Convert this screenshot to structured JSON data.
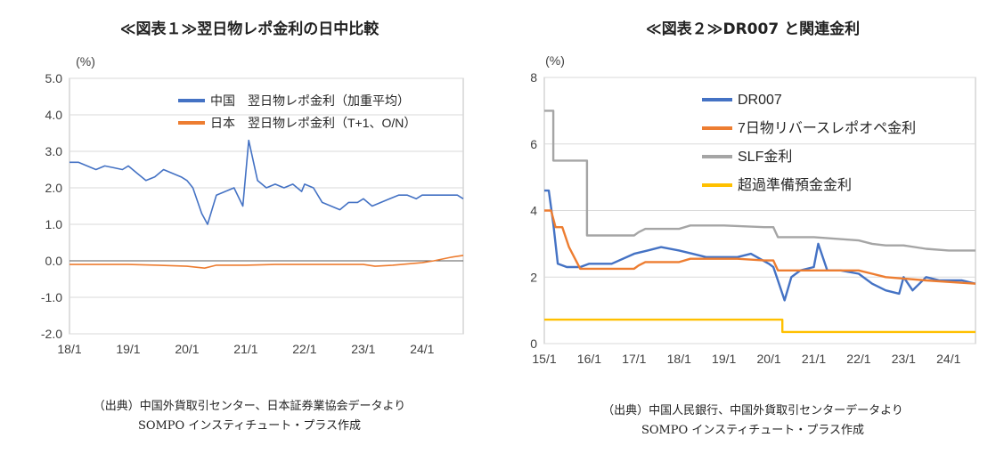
{
  "chart_data": [
    {
      "type": "line",
      "title": "≪図表１≫翌日物レポ金利の日中比較",
      "ylabel": "(%)",
      "ylim": [
        -2.0,
        5.0
      ],
      "yticks": [
        "5.0",
        "4.0",
        "3.0",
        "2.0",
        "1.0",
        "0.0",
        "-1.0",
        "-2.0"
      ],
      "xticks": [
        "18/1",
        "19/1",
        "20/1",
        "21/1",
        "22/1",
        "23/1",
        "24/1"
      ],
      "grid": true,
      "legend_position": "top-right",
      "series": [
        {
          "name": "中国　翌日物レポ金利（加重平均）",
          "color": "#4472C4",
          "x": [
            2018.0,
            2018.15,
            2018.3,
            2018.45,
            2018.6,
            2018.75,
            2018.9,
            2019.0,
            2019.15,
            2019.3,
            2019.45,
            2019.6,
            2019.75,
            2019.9,
            2020.0,
            2020.1,
            2020.25,
            2020.35,
            2020.5,
            2020.65,
            2020.8,
            2020.95,
            2021.0,
            2021.05,
            2021.2,
            2021.35,
            2021.5,
            2021.65,
            2021.8,
            2021.95,
            2022.0,
            2022.15,
            2022.3,
            2022.45,
            2022.6,
            2022.75,
            2022.9,
            2023.0,
            2023.15,
            2023.3,
            2023.45,
            2023.6,
            2023.75,
            2023.9,
            2024.0,
            2024.15,
            2024.3,
            2024.45,
            2024.6,
            2024.7
          ],
          "y": [
            2.7,
            2.7,
            2.6,
            2.5,
            2.6,
            2.55,
            2.5,
            2.6,
            2.4,
            2.2,
            2.3,
            2.5,
            2.4,
            2.3,
            2.2,
            2.0,
            1.3,
            1.0,
            1.8,
            1.9,
            2.0,
            1.5,
            2.4,
            3.3,
            2.2,
            2.0,
            2.1,
            2.0,
            2.1,
            1.9,
            2.1,
            2.0,
            1.6,
            1.5,
            1.4,
            1.6,
            1.6,
            1.7,
            1.5,
            1.6,
            1.7,
            1.8,
            1.8,
            1.7,
            1.8,
            1.8,
            1.8,
            1.8,
            1.8,
            1.7
          ]
        },
        {
          "name": "日本　翌日物レポ金利（T+1、O/N）",
          "color": "#ED7D31",
          "x": [
            2018.0,
            2018.5,
            2019.0,
            2019.5,
            2020.0,
            2020.3,
            2020.5,
            2021.0,
            2021.5,
            2022.0,
            2022.5,
            2023.0,
            2023.2,
            2023.5,
            2024.0,
            2024.2,
            2024.5,
            2024.7
          ],
          "y": [
            -0.1,
            -0.1,
            -0.1,
            -0.12,
            -0.15,
            -0.2,
            -0.12,
            -0.12,
            -0.1,
            -0.1,
            -0.1,
            -0.1,
            -0.15,
            -0.12,
            -0.05,
            0.0,
            0.1,
            0.15
          ]
        }
      ],
      "source": [
        "（出典）中国外貨取引センター、日本証券業協会データより",
        "SOMPO インスティチュート・プラス作成"
      ]
    },
    {
      "type": "line",
      "title": "≪図表２≫DR007 と関連金利",
      "ylabel": "(%)",
      "ylim": [
        0,
        8
      ],
      "yticks": [
        "8",
        "6",
        "4",
        "2",
        "0"
      ],
      "xticks": [
        "15/1",
        "16/1",
        "17/1",
        "18/1",
        "19/1",
        "20/1",
        "21/1",
        "22/1",
        "23/1",
        "24/1"
      ],
      "grid": true,
      "legend_position": "top-center",
      "series": [
        {
          "name": "DR007",
          "color": "#4472C4",
          "x": [
            2015.0,
            2015.1,
            2015.2,
            2015.3,
            2015.5,
            2015.8,
            2016.0,
            2016.5,
            2017.0,
            2017.3,
            2017.6,
            2018.0,
            2018.3,
            2018.6,
            2019.0,
            2019.3,
            2019.6,
            2020.0,
            2020.1,
            2020.2,
            2020.35,
            2020.5,
            2020.7,
            2021.0,
            2021.1,
            2021.3,
            2021.6,
            2022.0,
            2022.3,
            2022.6,
            2022.9,
            2023.0,
            2023.2,
            2023.5,
            2023.8,
            2024.0,
            2024.3,
            2024.6
          ],
          "y": [
            4.6,
            4.6,
            3.6,
            2.4,
            2.3,
            2.3,
            2.4,
            2.4,
            2.7,
            2.8,
            2.9,
            2.8,
            2.7,
            2.6,
            2.6,
            2.6,
            2.7,
            2.4,
            2.3,
            1.9,
            1.3,
            2.0,
            2.2,
            2.3,
            3.0,
            2.2,
            2.2,
            2.1,
            1.8,
            1.6,
            1.5,
            2.0,
            1.6,
            2.0,
            1.9,
            1.9,
            1.9,
            1.8
          ]
        },
        {
          "name": "7日物リバースレポオペ金利",
          "color": "#ED7D31",
          "x": [
            2015.0,
            2015.15,
            2015.25,
            2015.4,
            2015.55,
            2015.8,
            2016.0,
            2017.0,
            2017.1,
            2017.25,
            2018.0,
            2018.25,
            2019.0,
            2019.3,
            2019.9,
            2020.1,
            2020.2,
            2020.9,
            2021.0,
            2022.0,
            2022.3,
            2022.6,
            2023.5,
            2024.6
          ],
          "y": [
            4.0,
            4.0,
            3.5,
            3.5,
            2.9,
            2.25,
            2.25,
            2.25,
            2.35,
            2.45,
            2.45,
            2.55,
            2.55,
            2.55,
            2.5,
            2.5,
            2.2,
            2.2,
            2.2,
            2.2,
            2.1,
            2.0,
            1.9,
            1.8
          ]
        },
        {
          "name": "SLF金利",
          "color": "#A5A5A5",
          "x": [
            2015.0,
            2015.2,
            2015.2,
            2015.95,
            2015.95,
            2017.0,
            2017.1,
            2017.25,
            2018.0,
            2018.25,
            2019.0,
            2019.9,
            2020.0,
            2020.1,
            2020.2,
            2020.9,
            2021.0,
            2022.0,
            2022.3,
            2022.6,
            2023.0,
            2023.5,
            2024.0,
            2024.6
          ],
          "y": [
            7.0,
            7.0,
            5.5,
            5.5,
            3.25,
            3.25,
            3.35,
            3.45,
            3.45,
            3.55,
            3.55,
            3.5,
            3.5,
            3.5,
            3.2,
            3.2,
            3.2,
            3.1,
            3.0,
            2.95,
            2.95,
            2.85,
            2.8,
            2.8
          ]
        },
        {
          "name": "超過準備預金金利",
          "color": "#FFC000",
          "x": [
            2015.0,
            2020.3,
            2020.3,
            2024.6
          ],
          "y": [
            0.72,
            0.72,
            0.35,
            0.35
          ]
        }
      ],
      "source": [
        "（出典）中国人民銀行、中国外貨取引センターデータより",
        "SOMPO インスティチュート・プラス作成"
      ]
    }
  ]
}
